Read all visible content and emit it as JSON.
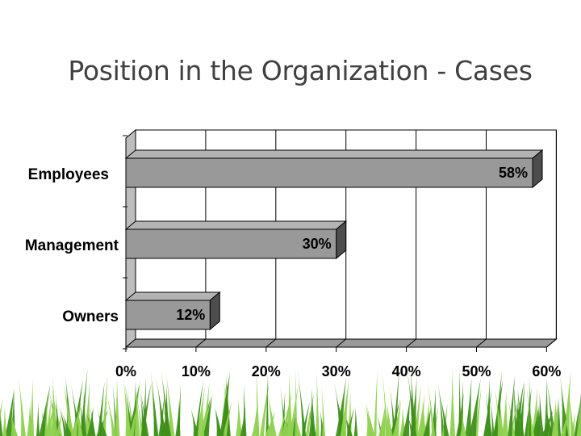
{
  "slide": {
    "title": "Position in the Organization - Cases"
  },
  "colors": {
    "bar_face": "#999999",
    "bar_top": "#b3b3b3",
    "bar_side": "#4d4d4d",
    "wall": "#ffffff",
    "floor": "#9a9a9a",
    "grass_dark": "#3f8f1a",
    "grass_light": "#8fd14f"
  },
  "chart_data": {
    "type": "bar",
    "orientation": "horizontal",
    "style": "3d",
    "categories": [
      "Employees",
      "Management",
      "Owners"
    ],
    "values": [
      58,
      30,
      12
    ],
    "data_labels": [
      "58%",
      "30%",
      "12%"
    ],
    "xlim": [
      0,
      60
    ],
    "x_ticks": [
      0,
      10,
      20,
      30,
      40,
      50,
      60
    ],
    "x_tick_labels": [
      "0%",
      "10%",
      "20%",
      "30%",
      "40%",
      "50%",
      "60%"
    ],
    "grid": true,
    "legend": "none",
    "title": "Position in the Organization - Cases"
  }
}
